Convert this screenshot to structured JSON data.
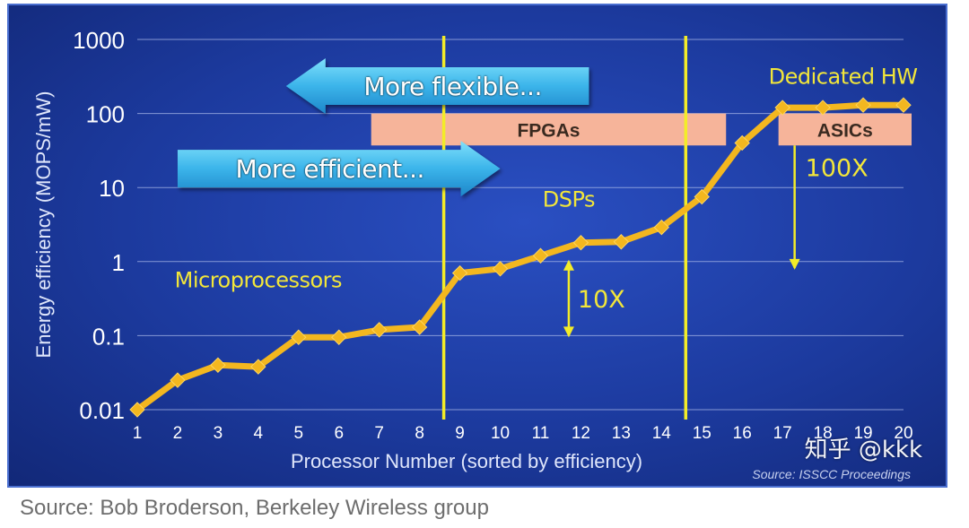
{
  "chart_data": {
    "type": "line",
    "ylabel": "Energy efficiency (MOPS/mW)",
    "xlabel": "Processor Number (sorted by efficiency)",
    "y_scale": "log",
    "ylim": [
      0.01,
      1000
    ],
    "y_ticks": [
      0.01,
      0.1,
      1,
      10,
      100,
      1000
    ],
    "y_tick_labels": [
      "0.01",
      "0.1",
      "1",
      "10",
      "100",
      "1000"
    ],
    "xlim": [
      1,
      20
    ],
    "x_ticks": [
      1,
      2,
      3,
      4,
      5,
      6,
      7,
      8,
      9,
      10,
      11,
      12,
      13,
      14,
      15,
      16,
      17,
      18,
      19,
      20
    ],
    "x_tick_labels": [
      "1",
      "2",
      "3",
      "4",
      "5",
      "6",
      "7",
      "8",
      "9",
      "10",
      "11",
      "12",
      "13",
      "14",
      "15",
      "16",
      "17",
      "18",
      "19",
      "20"
    ],
    "grid": "horizontal",
    "series": [
      {
        "name": "Energy efficiency",
        "x": [
          1,
          2,
          3,
          4,
          5,
          6,
          7,
          8,
          9,
          10,
          11,
          12,
          13,
          14,
          15,
          16,
          17,
          18,
          19,
          20
        ],
        "values": [
          0.01,
          0.025,
          0.04,
          0.038,
          0.095,
          0.095,
          0.12,
          0.13,
          0.7,
          0.8,
          1.2,
          1.8,
          1.85,
          2.9,
          7.5,
          40,
          120,
          120,
          130,
          130
        ]
      }
    ],
    "divider_lines_x": [
      8.6,
      14.6
    ],
    "category_labels": [
      {
        "text": "Microprocessors",
        "x": 4.0,
        "y": 0.45
      },
      {
        "text": "DSPs",
        "x": 11.7,
        "y": 5.5
      },
      {
        "text": "Dedicated HW",
        "x": 18.5,
        "y": 250
      }
    ],
    "bands": [
      {
        "label": "FPGAs",
        "x_start": 6.8,
        "x_end": 15.6,
        "y_top": 100,
        "y_bottom": 37
      },
      {
        "label": "ASICs",
        "x_start": 16.9,
        "x_end": 20.2,
        "y_top": 100,
        "y_bottom": 37
      }
    ],
    "arrow_banners": [
      {
        "label": "More flexible...",
        "direction": "left",
        "x_start": 5.0,
        "x_end": 12.2,
        "y": 235
      },
      {
        "label": "More efficient...",
        "direction": "right",
        "x_start": 2.0,
        "x_end": 10.0,
        "y": 18
      }
    ],
    "range_annotations": [
      {
        "label": "10X",
        "x": 11.7,
        "y_from": 1.0,
        "y_to": 0.1
      },
      {
        "label": "100X",
        "x": 17.3,
        "y_from": 37,
        "y_to": 0.82
      }
    ],
    "source_note": "Source: ISSCC Proceedings"
  },
  "watermark": "知乎 @kkk",
  "footer_source": "Source: Bob Broderson, Berkeley Wireless group",
  "colors": {
    "line": "#f3b71f",
    "divider": "#f3ec28",
    "label_yellow": "#f2e63a",
    "band_fill": "#f6b49a",
    "band_text": "#3a2a20",
    "banner_light": "#64d3f5",
    "banner_dark": "#1f95d6",
    "text_white": "#ffffff"
  }
}
